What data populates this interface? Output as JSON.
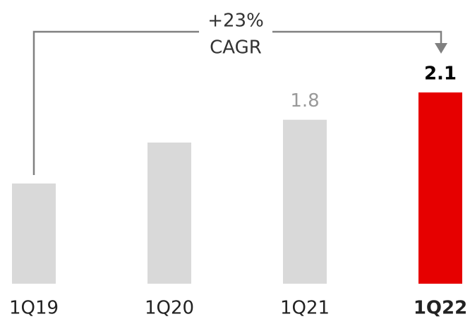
{
  "chart_data": {
    "type": "bar",
    "categories": [
      "1Q19",
      "1Q20",
      "1Q21",
      "1Q22"
    ],
    "values": [
      1.1,
      1.55,
      1.8,
      2.1
    ],
    "value_labels": [
      null,
      null,
      "1.8",
      "2.1"
    ],
    "colors": [
      "#d9d9d9",
      "#d9d9d9",
      "#d9d9d9",
      "#e60000"
    ],
    "bold": [
      false,
      false,
      false,
      true
    ],
    "annotation": [
      "+23%",
      "CAGR"
    ],
    "ylim": [
      0,
      2.1
    ]
  }
}
